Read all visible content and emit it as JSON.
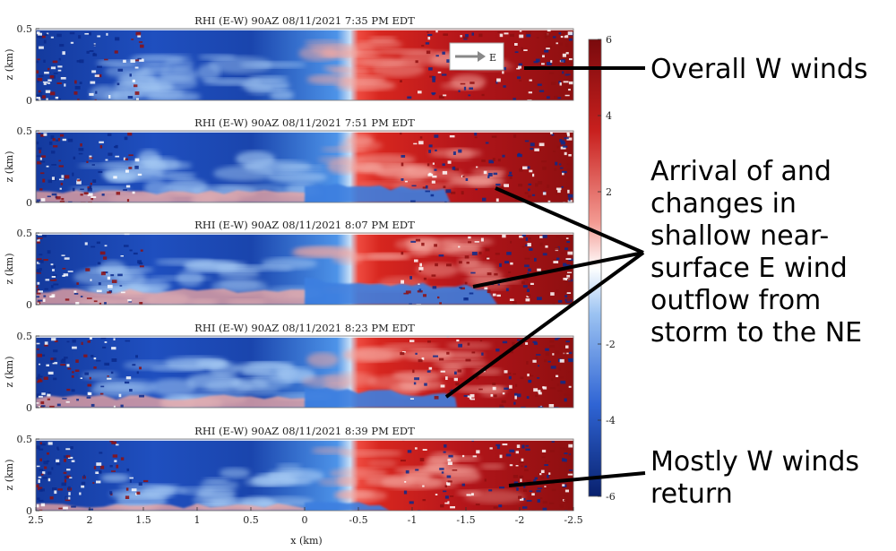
{
  "chart_data": {
    "type": "heatmap",
    "description_units": "radial velocity panels, diverging colormap",
    "panels": [
      {
        "title": "RHI (E-W) 90AZ 08/11/2021   7:35 PM EDT",
        "outflow": 0.0
      },
      {
        "title": "RHI (E-W) 90AZ 08/11/2021   7:51 PM EDT",
        "outflow": 0.55
      },
      {
        "title": "RHI (E-W) 90AZ 08/11/2021   8:07 PM EDT",
        "outflow": 0.9
      },
      {
        "title": "RHI (E-W) 90AZ 08/11/2021   8:23 PM EDT",
        "outflow": 0.6
      },
      {
        "title": "RHI (E-W) 90AZ 08/11/2021   8:39 PM EDT",
        "outflow": 0.1
      }
    ],
    "xlabel": "x (km)",
    "ylabel": "z (km)",
    "xticks": [
      "2.5",
      "2",
      "1.5",
      "1",
      "0.5",
      "0",
      "-0.5",
      "-1",
      "-1.5",
      "-2",
      "-2.5"
    ],
    "xlim": [
      2.5,
      -2.5
    ],
    "yticks": [
      "0",
      "0.5"
    ],
    "ylim": [
      0,
      0.5
    ],
    "colorbar": {
      "min": -6,
      "max": 6,
      "ticks": [
        "6",
        "4",
        "2",
        "-2",
        "-4",
        "-6"
      ]
    },
    "arrow_label": "E",
    "annotations": {
      "overall": "Overall W winds",
      "arrival": [
        "Arrival of and",
        "changes in",
        "shallow near-",
        "surface E wind",
        "outflow from",
        "storm to the NE"
      ],
      "return": [
        "Mostly W winds",
        "return"
      ]
    }
  },
  "colors": {
    "deep_blue": "#0a2a8c",
    "mid_blue": "#3d7fe0",
    "light_blue": "#a9cdf5",
    "white": "#ffffff",
    "light_red": "#f5a8a0",
    "mid_red": "#e2332a",
    "deep_red": "#8e0f10"
  }
}
